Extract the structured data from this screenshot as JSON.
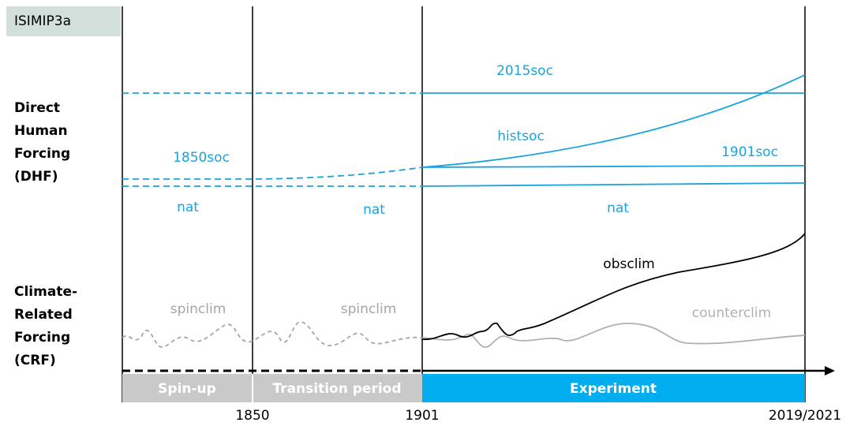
{
  "badge": "ISIMIP3a",
  "rows": [
    {
      "lines": [
        "Direct",
        "Human",
        "Forcing",
        "(DHF)"
      ]
    },
    {
      "lines": [
        "Climate-",
        "Related",
        "Forcing",
        "(CRF)"
      ]
    }
  ],
  "scenarios": {
    "soc2015": "2015soc",
    "histsoc": "histsoc",
    "soc1901": "1901soc",
    "soc1850": "1850soc",
    "nat": [
      "nat",
      "nat",
      "nat"
    ],
    "obsclim": "obsclim",
    "counterclim": "counterclim",
    "spinclim": [
      "spinclim",
      "spinclim"
    ]
  },
  "phases": [
    "Spin-up",
    "Transition period",
    "Experiment"
  ],
  "years": [
    "1850",
    "1901",
    "2019/2021"
  ]
}
